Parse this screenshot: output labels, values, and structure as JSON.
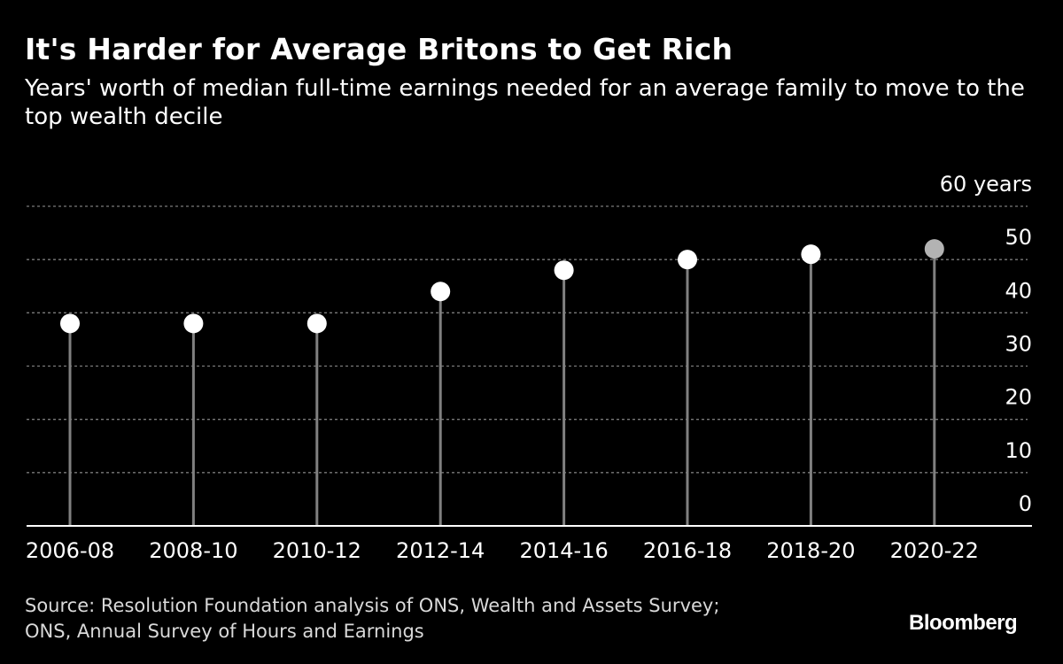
{
  "title": "It's Harder for Average Britons to Get Rich",
  "subtitle": "Years' worth of median full-time earnings needed for an average family to move to the top wealth decile",
  "source": [
    "Source: Resolution Foundation analysis of ONS, Wealth and Assets Survey;",
    "ONS, Annual Survey of Hours and Earnings"
  ],
  "brand": "Bloomberg",
  "colors": {
    "background": "#000000",
    "stem": "#808080",
    "marker": "#ffffff",
    "highlight_marker": "#b3b3b3",
    "grid": "#7a7a7a",
    "text": "#ffffff"
  },
  "chart_data": {
    "type": "lollipop",
    "categories": [
      "2006-08",
      "2008-10",
      "2010-12",
      "2012-14",
      "2014-16",
      "2016-18",
      "2018-20",
      "2020-22"
    ],
    "values": [
      38,
      38,
      38,
      44,
      48,
      50,
      51,
      52
    ],
    "highlight_index": 7,
    "ylim": [
      0,
      60
    ],
    "yticks": [
      0,
      10,
      20,
      30,
      40,
      50,
      60
    ],
    "ytick_labels": [
      "0",
      "10",
      "20",
      "30",
      "40",
      "50",
      "60 years"
    ],
    "grid": "horizontal dashed",
    "y_axis_side": "right"
  }
}
